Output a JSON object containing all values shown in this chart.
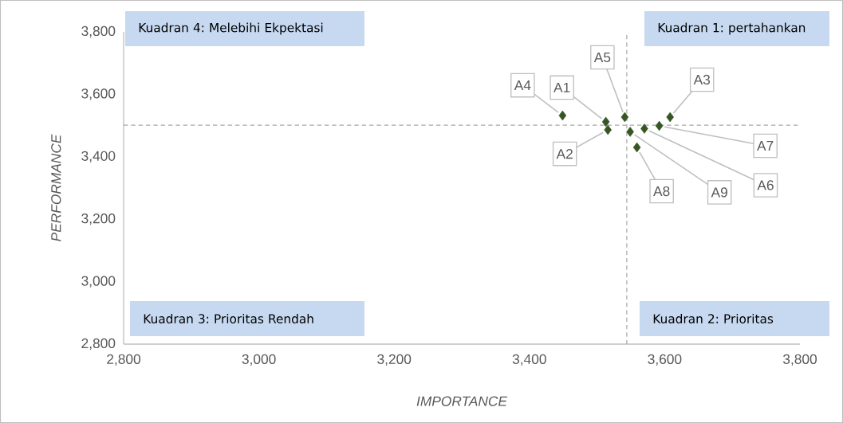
{
  "chart_data": {
    "type": "scatter",
    "xlabel": "IMPORTANCE",
    "ylabel": "PERFORMANCE",
    "x": [
      3513,
      3516,
      3608,
      3449,
      3541,
      3570,
      3592,
      3559,
      3549
    ],
    "values": [
      3512,
      3486,
      3527,
      3532,
      3527,
      3490,
      3499,
      3430,
      3480
    ],
    "color": "#375623",
    "marker": "diamond",
    "grid": false,
    "xlim": [
      2800,
      3800
    ],
    "ylim": [
      2800,
      3800
    ],
    "xticks": [
      {
        "value": 2800,
        "label": "2,800"
      },
      {
        "value": 3000,
        "label": "3,000"
      },
      {
        "value": 3200,
        "label": "3,200"
      },
      {
        "value": 3400,
        "label": "3,400"
      },
      {
        "value": 3600,
        "label": "3,600"
      },
      {
        "value": 3800,
        "label": "3,800"
      }
    ],
    "yticks": [
      {
        "value": 2800,
        "label": "2,800"
      },
      {
        "value": 3000,
        "label": "3,000"
      },
      {
        "value": 3200,
        "label": "3,200"
      },
      {
        "value": 3400,
        "label": "3,400"
      },
      {
        "value": 3600,
        "label": "3,600"
      },
      {
        "value": 3800,
        "label": "3,800"
      }
    ],
    "ref_lines": [
      {
        "axis": "x",
        "value": 3544,
        "line_style": "dashed",
        "color": "#a6a6a6"
      },
      {
        "axis": "y",
        "value": 3501,
        "line_style": "dashed",
        "color": "#a6a6a6"
      }
    ],
    "annotations": [
      {
        "text": "A1",
        "x": 3513,
        "y": 3512
      },
      {
        "text": "A2",
        "x": 3516,
        "y": 3486
      },
      {
        "text": "A3",
        "x": 3608,
        "y": 3527
      },
      {
        "text": "A4",
        "x": 3449,
        "y": 3532
      },
      {
        "text": "A5",
        "x": 3541,
        "y": 3527
      },
      {
        "text": "A6",
        "x": 3570,
        "y": 3490
      },
      {
        "text": "A7",
        "x": 3592,
        "y": 3499
      },
      {
        "text": "A8",
        "x": 3559,
        "y": 3430
      },
      {
        "text": "A9",
        "x": 3549,
        "y": 3480
      },
      "Kuadran 4: Melebihi Ekpektasi",
      "Kuadran 1: pertahankan",
      "Kuadran 3: Prioritas Rendah",
      "Kuadran 2: Prioritas"
    ]
  }
}
